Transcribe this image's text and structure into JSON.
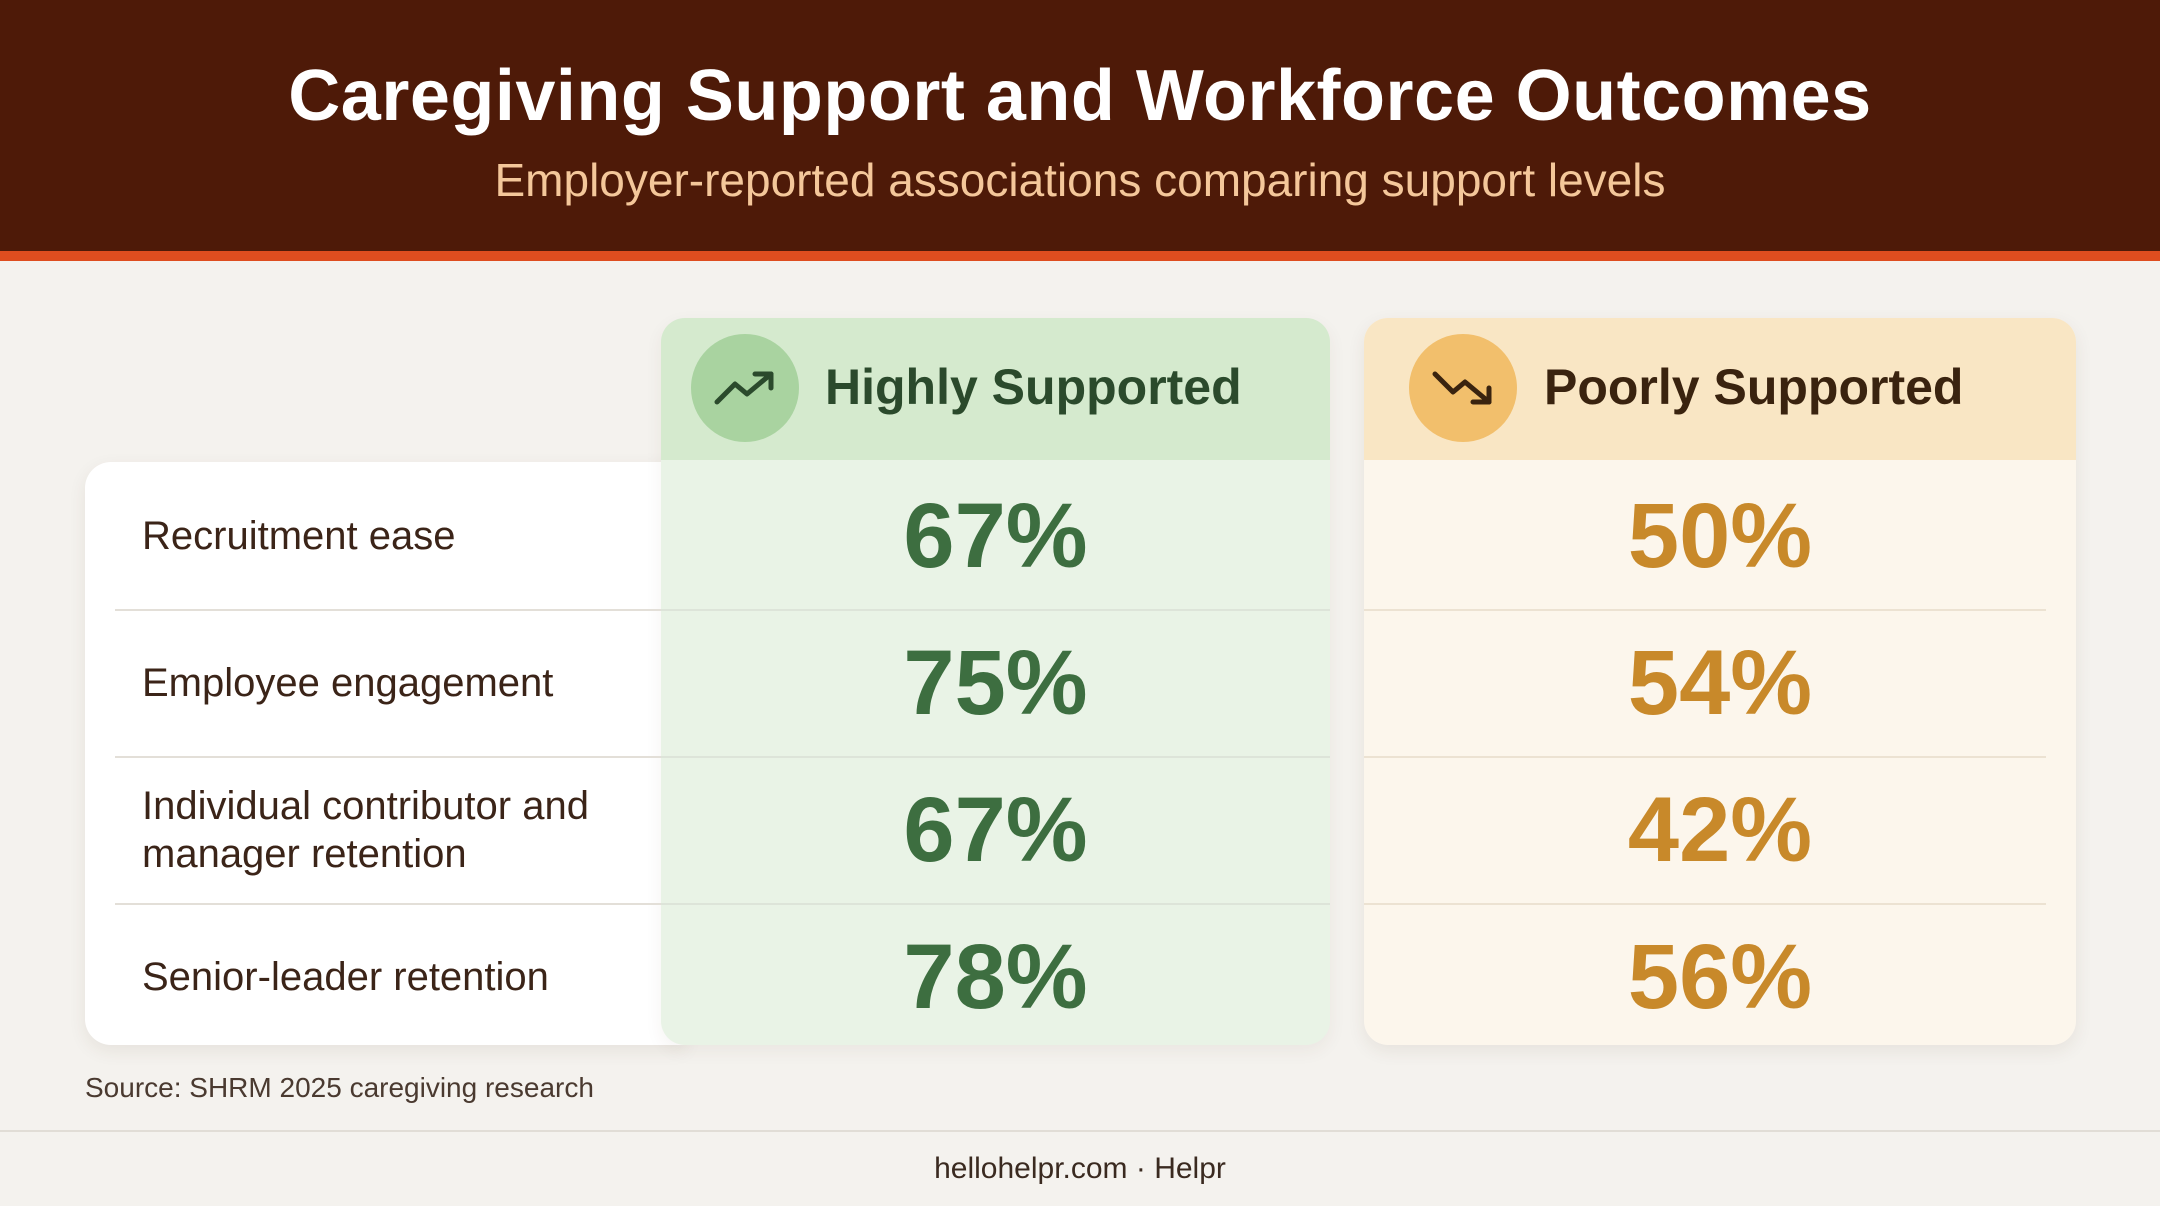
{
  "header": {
    "title": "Caregiving Support and Workforce Outcomes",
    "subtitle": "Employer-reported associations comparing support levels"
  },
  "chart_data": {
    "type": "table",
    "title": "Caregiving Support and Workforce Outcomes",
    "subtitle": "Employer-reported associations comparing support levels",
    "categories": [
      "Recruitment ease",
      "Employee engagement",
      "Individual contributor and manager retention",
      "Senior-leader retention"
    ],
    "series": [
      {
        "name": "Highly Supported",
        "icon": "trend-up-icon",
        "color": "#3d6e40",
        "values": [
          67,
          75,
          67,
          78
        ],
        "labels": [
          "67%",
          "75%",
          "67%",
          "78%"
        ]
      },
      {
        "name": "Poorly Supported",
        "icon": "trend-down-icon",
        "color": "#c8892a",
        "values": [
          50,
          54,
          42,
          56
        ],
        "labels": [
          "50%",
          "54%",
          "42%",
          "56%"
        ]
      }
    ]
  },
  "source": "Source: SHRM 2025 caregiving research",
  "footer": "hellohelpr.com · Helpr",
  "colors": {
    "header_bg": "#4e1a08",
    "accent_stripe": "#de4d1f",
    "green": "#3d6e40",
    "orange": "#c8892a"
  }
}
